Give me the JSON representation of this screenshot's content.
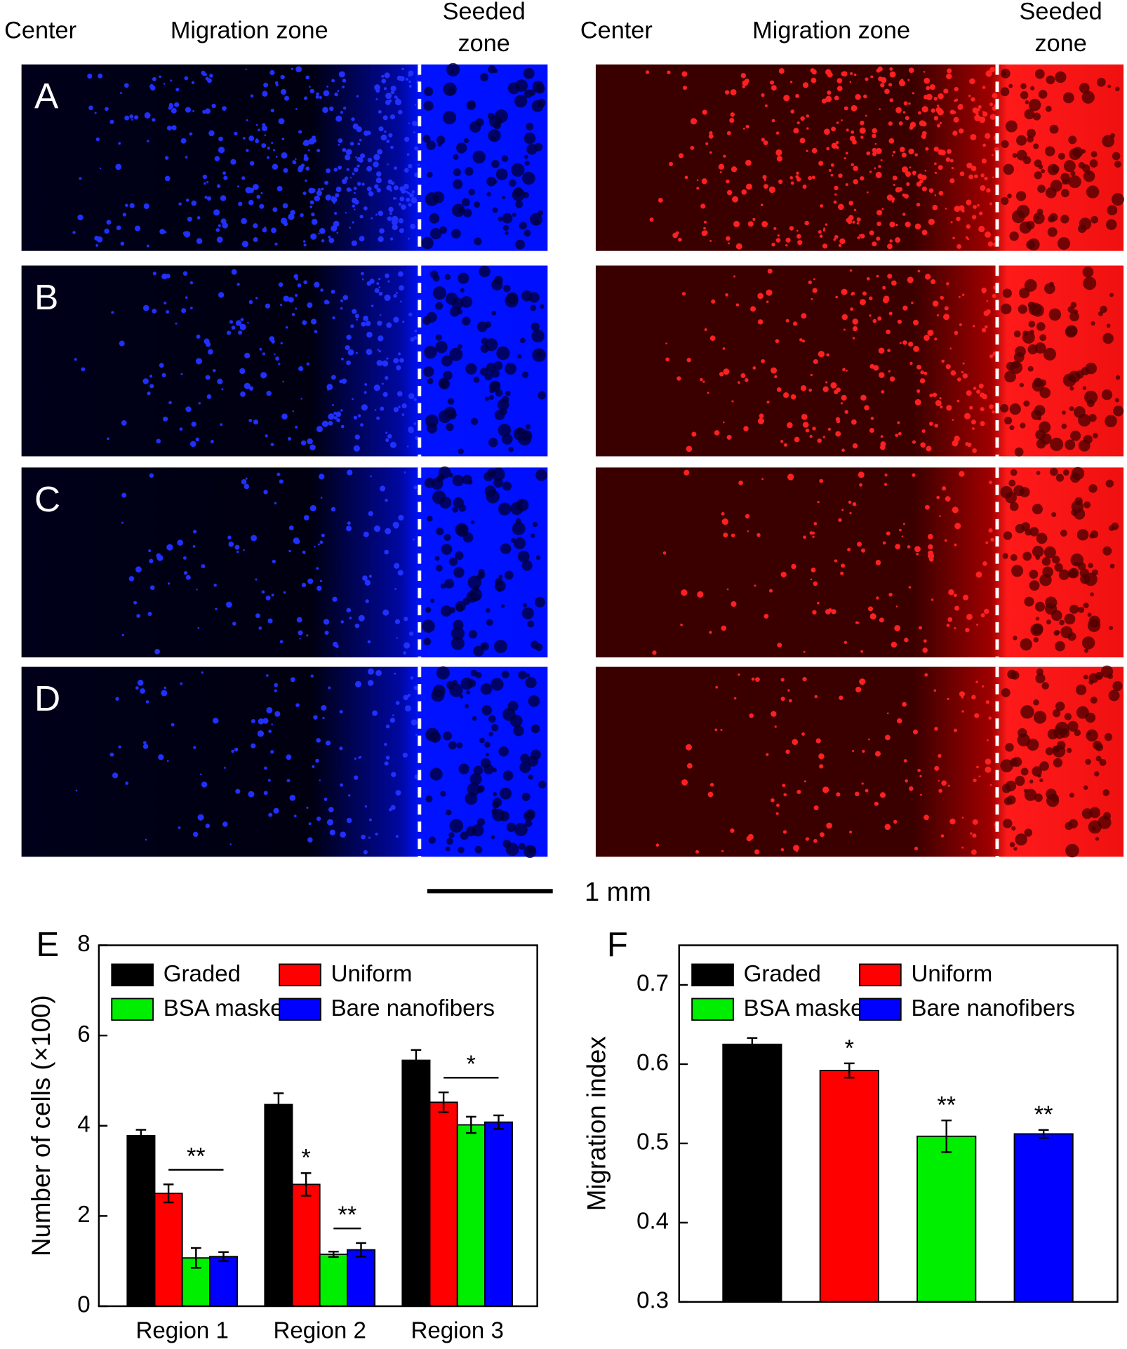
{
  "images": {
    "headers": {
      "center": "Center",
      "migration": "Migration zone",
      "seeded": [
        "Seeded",
        "zone"
      ]
    },
    "panel_labels": [
      "A",
      "B",
      "C",
      "D"
    ],
    "scale_bar": "1 mm"
  },
  "chart_data": [
    {
      "type": "bar",
      "label": "E",
      "ylabel": "Number of cells (×100)",
      "categories": [
        "Region 1",
        "Region 2",
        "Region 3"
      ],
      "series": [
        {
          "name": "Graded",
          "color": "#000000",
          "values": [
            3.78,
            4.47,
            5.45
          ],
          "errors": [
            0.13,
            0.25,
            0.23
          ]
        },
        {
          "name": "Uniform",
          "color": "#ff0000",
          "values": [
            2.5,
            2.7,
            4.52
          ],
          "errors": [
            0.2,
            0.25,
            0.22
          ]
        },
        {
          "name": "BSA masked",
          "color": "#00ee00",
          "values": [
            1.07,
            1.15,
            4.02
          ],
          "errors": [
            0.22,
            0.06,
            0.18
          ]
        },
        {
          "name": "Bare nanofibers",
          "color": "#0000ff",
          "values": [
            1.1,
            1.25,
            4.08
          ],
          "errors": [
            0.1,
            0.15,
            0.15
          ]
        }
      ],
      "ylim": [
        0,
        8
      ],
      "yticks": [
        0,
        2,
        4,
        6,
        8
      ],
      "legend": "top",
      "annotations": [
        {
          "text": "**",
          "category": 0,
          "series": [
            1,
            3
          ]
        },
        {
          "text": "*",
          "category": 1,
          "series": [
            1
          ]
        },
        {
          "text": "**",
          "category": 1,
          "series": [
            2,
            3
          ]
        },
        {
          "text": "*",
          "category": 2,
          "series": [
            1,
            3
          ]
        }
      ]
    },
    {
      "type": "bar",
      "label": "F",
      "ylabel": "Migration index",
      "series": [
        {
          "name": "Graded",
          "color": "#000000",
          "values": [
            0.625
          ],
          "errors": [
            0.008
          ]
        },
        {
          "name": "Uniform",
          "color": "#ff0000",
          "values": [
            0.592
          ],
          "errors": [
            0.009
          ]
        },
        {
          "name": "BSA masked",
          "color": "#00ee00",
          "values": [
            0.509
          ],
          "errors": [
            0.02
          ]
        },
        {
          "name": "Bare nanofibers",
          "color": "#0000ff",
          "values": [
            0.512
          ],
          "errors": [
            0.005
          ]
        }
      ],
      "ylim": [
        0.3,
        0.75
      ],
      "yticks": [
        0.3,
        0.4,
        0.5,
        0.6,
        0.7
      ],
      "legend": "top",
      "annotations": [
        {
          "text": "*",
          "category": 0,
          "series": [
            1
          ]
        },
        {
          "text": "**",
          "category": 0,
          "series": [
            2
          ]
        },
        {
          "text": "**",
          "category": 0,
          "series": [
            3
          ]
        }
      ]
    }
  ]
}
